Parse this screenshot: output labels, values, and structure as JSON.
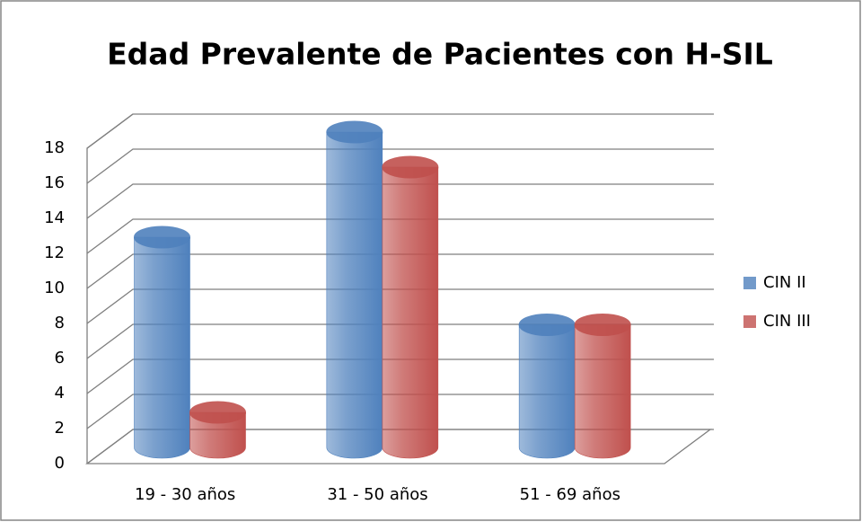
{
  "chart_data": {
    "type": "bar",
    "title": "Edad Prevalente de Pacientes con H-SIL",
    "categories": [
      "19 - 30 años",
      "31 - 50 años",
      "51 - 69 años"
    ],
    "series": [
      {
        "name": "CIN II",
        "color": "#4f81bd",
        "values": [
          12,
          18,
          7
        ]
      },
      {
        "name": "CIN III",
        "color": "#c0504d",
        "values": [
          2,
          16,
          7
        ]
      }
    ],
    "ylim": [
      0,
      18
    ],
    "yticks": [
      0,
      2,
      4,
      6,
      8,
      10,
      12,
      14,
      16,
      18
    ],
    "grid": true,
    "legend": "right"
  }
}
